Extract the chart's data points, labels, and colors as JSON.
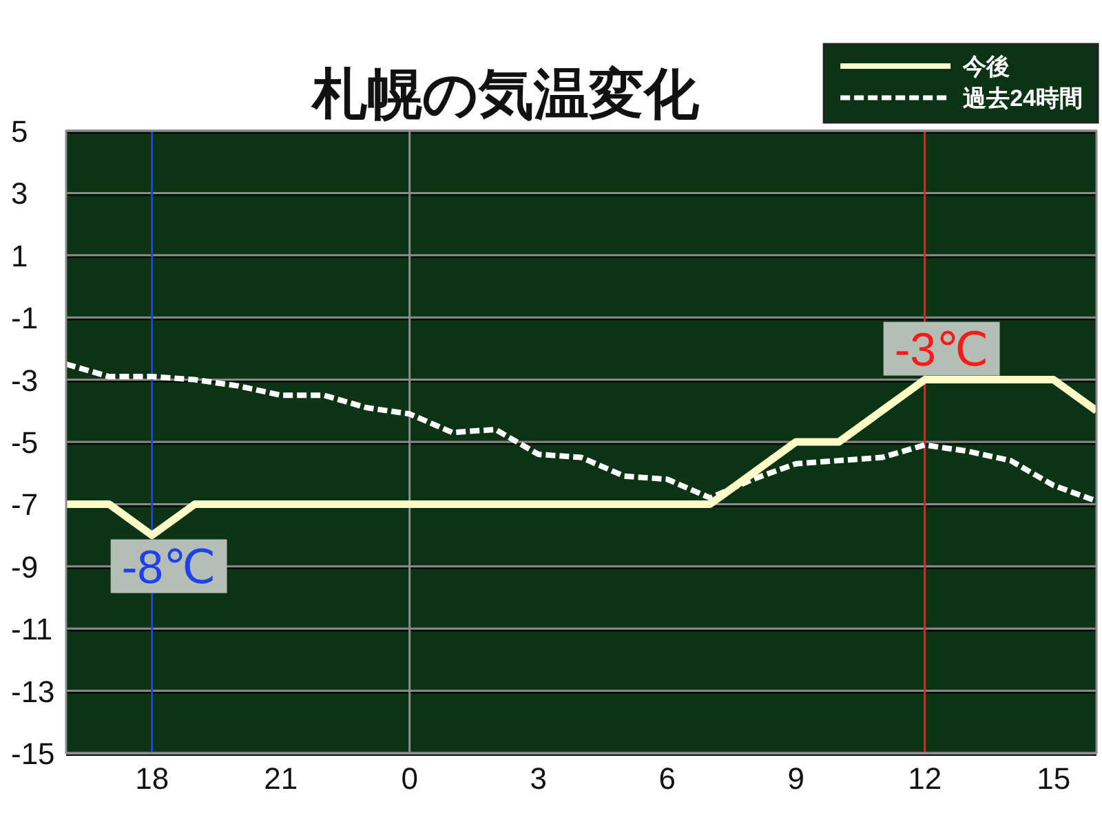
{
  "chart_data": {
    "type": "line",
    "title": "札幌の気温変化",
    "categories": [
      null,
      null,
      "18",
      null,
      null,
      "21",
      null,
      null,
      "0",
      null,
      null,
      "3",
      null,
      null,
      "6",
      null,
      null,
      "9",
      null,
      null,
      "12",
      null,
      null,
      "15",
      null
    ],
    "series": [
      {
        "name": "今後",
        "color": "#fffcc8",
        "line_style": "solid",
        "values": [
          -7,
          -7,
          -8,
          -7,
          -7,
          -7,
          -7,
          -7,
          -7,
          -7,
          -7,
          -7,
          -7,
          -7,
          -7,
          -7,
          -6,
          -5,
          -5,
          -4,
          -3,
          -3,
          -3,
          -3,
          -4
        ]
      },
      {
        "name": "過去24時間",
        "color": "#ffffff",
        "line_style": "dashed",
        "values": [
          -2.5,
          -2.9,
          -2.9,
          -3.0,
          -3.2,
          -3.5,
          -3.5,
          -3.9,
          -4.1,
          -4.7,
          -4.6,
          -5.4,
          -5.5,
          -6.1,
          -6.2,
          -6.8,
          -6.2,
          -5.7,
          -5.6,
          -5.5,
          -5.1,
          -5.3,
          -5.6,
          -6.4,
          -6.9
        ]
      }
    ],
    "ylim": [
      -15,
      5
    ],
    "yticks": [
      -15,
      -13,
      -11,
      -9,
      -7,
      -5,
      -3,
      -1,
      1,
      3,
      5
    ],
    "grid": "y",
    "legend": "top right",
    "ref_lines": [
      {
        "axis": "x",
        "value": "18",
        "color": "#2040f0"
      },
      {
        "axis": "x",
        "value": "0",
        "color": "#8c8c8c"
      },
      {
        "axis": "x",
        "value": "12",
        "color": "#ff1a1a"
      }
    ],
    "annotations": [
      {
        "text": "-8℃",
        "x": "18",
        "y": -8
      },
      {
        "text": "-3℃",
        "x": "12",
        "y": -3
      }
    ]
  }
}
